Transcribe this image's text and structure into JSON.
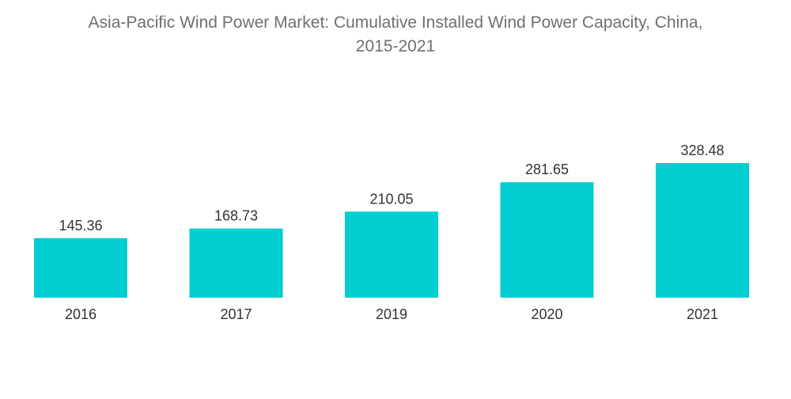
{
  "chart_data": {
    "type": "bar",
    "title": "Asia-Pacific Wind Power Market: Cumulative Installed Wind Power Capacity, China, 2015-2021",
    "title_lines": [
      "Asia-Pacific Wind Power Market: Cumulative Installed Wind Power Capacity, China,",
      "2015-2021"
    ],
    "categories": [
      "2016",
      "2017",
      "2019",
      "2020",
      "2021"
    ],
    "values": [
      145.36,
      168.73,
      210.05,
      281.65,
      328.48
    ],
    "value_labels": [
      "145.36",
      "168.73",
      "210.05",
      "281.65",
      "328.48"
    ],
    "xlabel": "",
    "ylabel": "",
    "ylim": [
      0,
      328.48
    ],
    "grid": false,
    "legend": "none",
    "bar_color": "#00ced1"
  }
}
